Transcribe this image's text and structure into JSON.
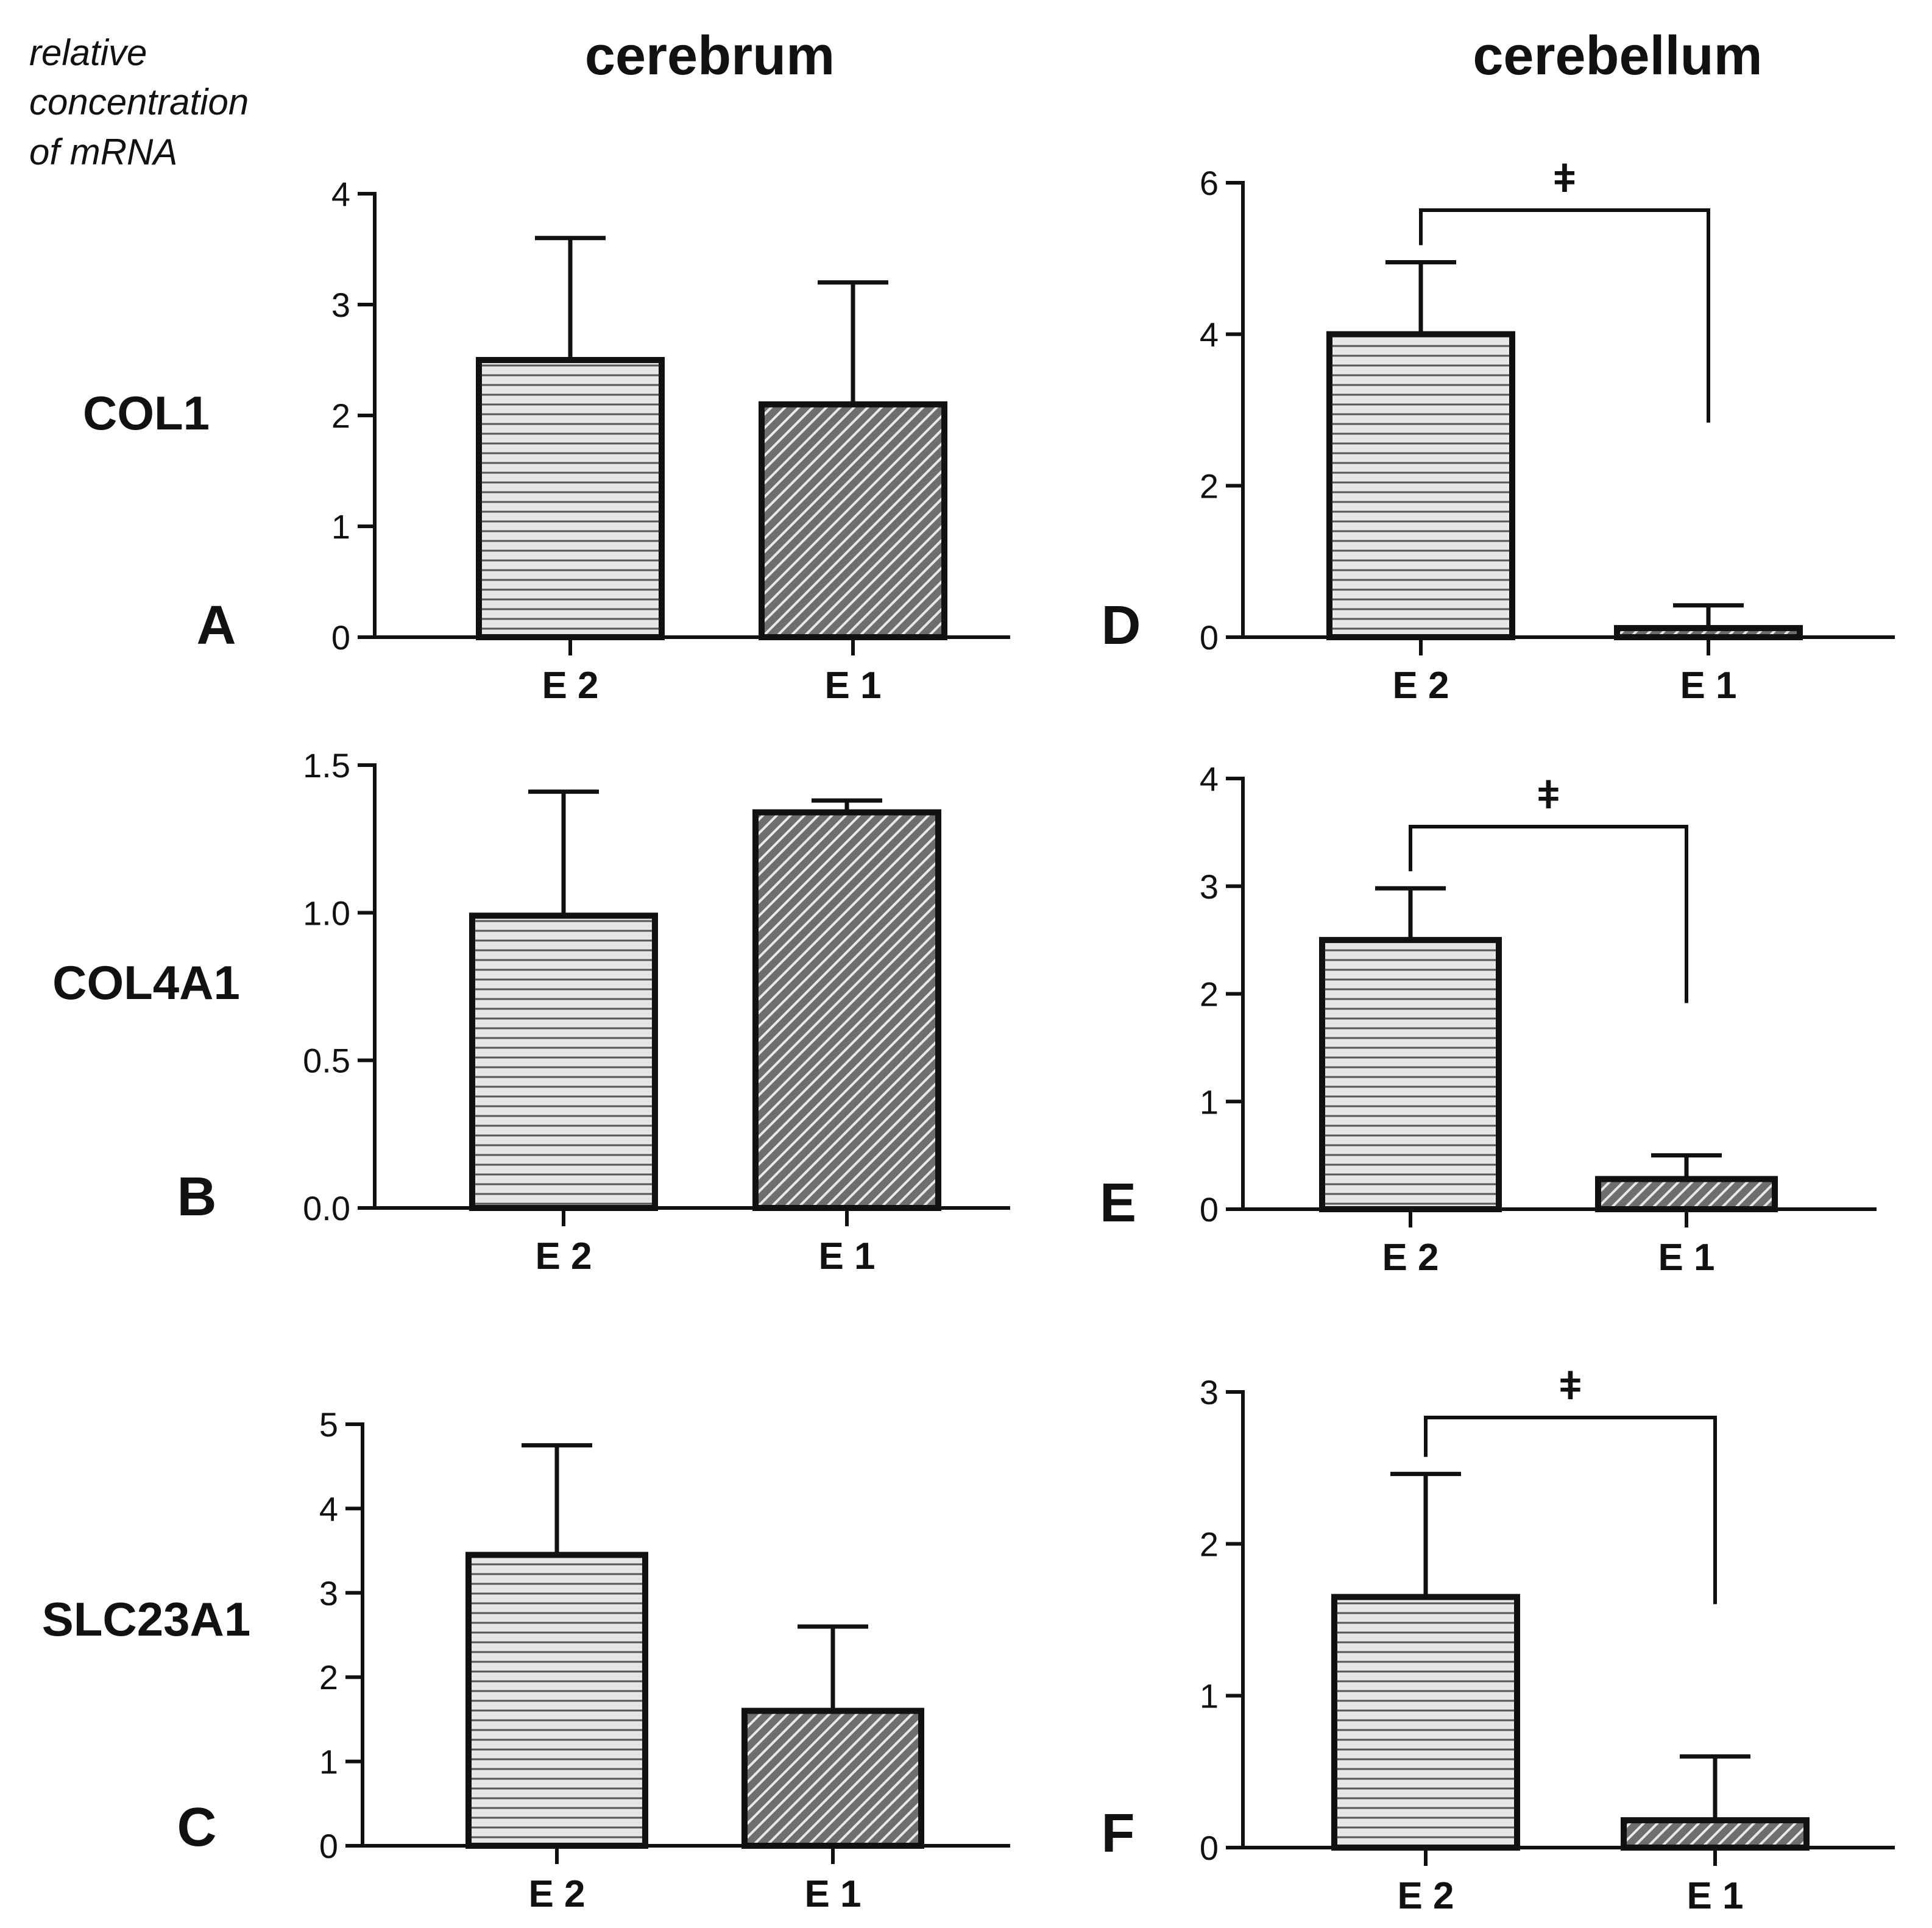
{
  "figure": {
    "y_axis_label": [
      "relative",
      "concentration",
      "of mRNA"
    ],
    "column_headers": [
      "cerebrum",
      "cerebellum"
    ],
    "row_labels": [
      "COL1",
      "COL4A1",
      "SLC23A1"
    ]
  },
  "chart_data": [
    {
      "type": "bar",
      "panel": "A",
      "region": "cerebrum",
      "gene": "COL1",
      "categories": [
        "E 2",
        "E 1"
      ],
      "values": [
        2.5,
        2.1
      ],
      "error_upper": [
        3.6,
        3.2
      ],
      "ylim": [
        0,
        4
      ],
      "yticks": [
        "0",
        "1",
        "2",
        "3",
        "4"
      ],
      "significance": null
    },
    {
      "type": "bar",
      "panel": "B",
      "region": "cerebrum",
      "gene": "COL4A1",
      "categories": [
        "E 2",
        "E 1"
      ],
      "values": [
        0.99,
        1.34
      ],
      "error_upper": [
        1.41,
        1.38
      ],
      "ylim": [
        0,
        1.5
      ],
      "yticks": [
        "0.0",
        "0.5",
        "1.0",
        "1.5"
      ],
      "significance": null
    },
    {
      "type": "bar",
      "panel": "C",
      "region": "cerebrum",
      "gene": "SLC23A1",
      "categories": [
        "E 2",
        "E 1"
      ],
      "values": [
        3.45,
        1.6
      ],
      "error_upper": [
        4.75,
        2.6
      ],
      "ylim": [
        0,
        5
      ],
      "yticks": [
        "0",
        "1",
        "2",
        "3",
        "4",
        "5"
      ],
      "significance": null
    },
    {
      "type": "bar",
      "panel": "D",
      "region": "cerebellum",
      "gene": "COL1",
      "categories": [
        "E 2",
        "E 1"
      ],
      "values": [
        4.0,
        0.12
      ],
      "error_upper": [
        4.95,
        0.42
      ],
      "ylim": [
        0,
        6
      ],
      "yticks": [
        "0",
        "2",
        "4",
        "6"
      ],
      "significance": "ǂ"
    },
    {
      "type": "bar",
      "panel": "E",
      "region": "cerebellum",
      "gene": "COL4A1",
      "categories": [
        "E 2",
        "E 1"
      ],
      "values": [
        2.5,
        0.28
      ],
      "error_upper": [
        2.98,
        0.5
      ],
      "ylim": [
        0,
        4
      ],
      "yticks": [
        "0",
        "1",
        "2",
        "3",
        "4"
      ],
      "significance": "ǂ"
    },
    {
      "type": "bar",
      "panel": "F",
      "region": "cerebellum",
      "gene": "SLC23A1",
      "categories": [
        "E 2",
        "E 1"
      ],
      "values": [
        1.65,
        0.18
      ],
      "error_upper": [
        2.46,
        0.6
      ],
      "ylim": [
        0,
        3
      ],
      "yticks": [
        "0",
        "1",
        "2",
        "3"
      ],
      "significance": "ǂ"
    }
  ]
}
